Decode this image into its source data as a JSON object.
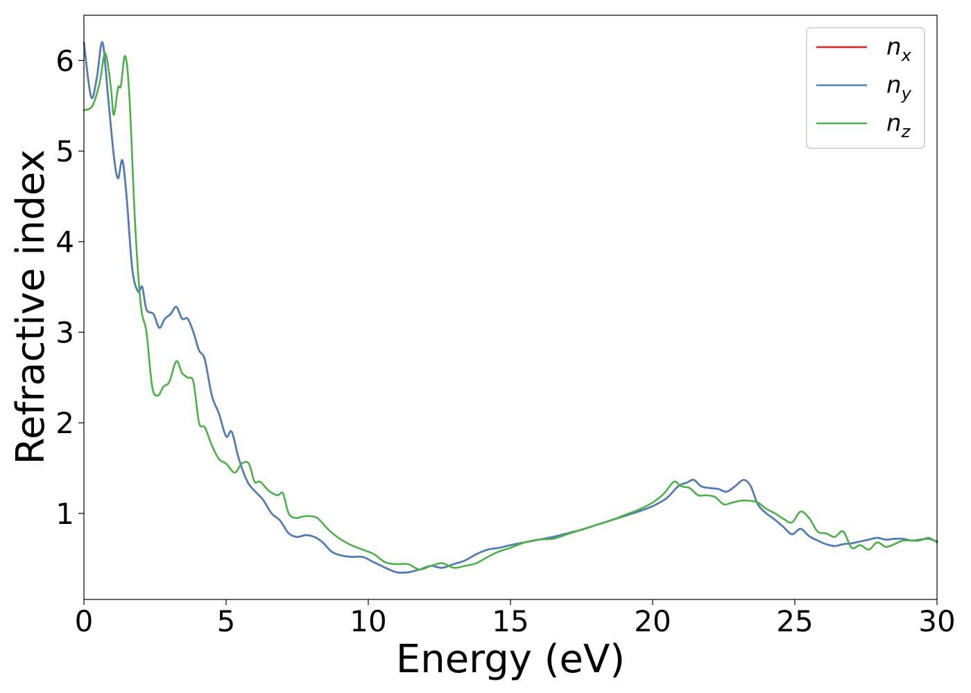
{
  "chart_data": {
    "type": "line",
    "title": "",
    "xlabel": "Energy (eV)",
    "ylabel": "Refractive index",
    "xlim": [
      0,
      30
    ],
    "ylim": [
      0.05,
      6.5
    ],
    "xticks": [
      0,
      5,
      10,
      15,
      20,
      25,
      30
    ],
    "yticks": [
      1,
      2,
      3,
      4,
      5,
      6
    ],
    "grid": false,
    "legend_position": "top-right",
    "legend": [
      {
        "base": "n",
        "sub": "x"
      },
      {
        "base": "n",
        "sub": "y"
      },
      {
        "base": "n",
        "sub": "z"
      }
    ],
    "series": [
      {
        "name": "n_x",
        "color": "#e41a1c",
        "x": [
          0,
          0.25,
          0.45,
          0.65,
          0.85,
          1.05,
          1.2,
          1.35,
          1.5,
          1.7,
          1.9,
          2.05,
          2.2,
          2.45,
          2.65,
          2.85,
          3.05,
          3.25,
          3.45,
          3.65,
          3.85,
          4.05,
          4.25,
          4.5,
          4.75,
          5.0,
          5.2,
          5.45,
          5.75,
          6.0,
          6.3,
          6.6,
          6.9,
          7.2,
          7.5,
          7.8,
          8.1,
          8.4,
          8.7,
          9.0,
          9.4,
          9.8,
          10.2,
          10.6,
          11.0,
          11.4,
          11.8,
          12.2,
          12.6,
          13.0,
          13.4,
          13.8,
          14.2,
          14.6,
          15.0,
          15.5,
          16.0,
          16.5,
          17.0,
          17.5,
          18.0,
          18.5,
          19.0,
          19.5,
          20.0,
          20.5,
          20.9,
          21.2,
          21.45,
          21.7,
          22.0,
          22.3,
          22.6,
          22.9,
          23.2,
          23.45,
          23.7,
          24.0,
          24.3,
          24.6,
          24.9,
          25.2,
          25.5,
          25.8,
          26.1,
          26.4,
          26.7,
          27.0,
          27.3,
          27.6,
          27.9,
          28.2,
          28.5,
          28.8,
          29.1,
          29.4,
          29.7,
          30.0
        ],
        "y": [
          6.2,
          5.6,
          5.8,
          6.2,
          5.6,
          4.95,
          4.7,
          4.9,
          4.5,
          3.7,
          3.45,
          3.5,
          3.25,
          3.2,
          3.05,
          3.15,
          3.2,
          3.28,
          3.15,
          3.15,
          3.0,
          2.8,
          2.7,
          2.3,
          2.1,
          1.85,
          1.9,
          1.6,
          1.35,
          1.25,
          1.15,
          1.0,
          0.92,
          0.78,
          0.74,
          0.76,
          0.74,
          0.68,
          0.58,
          0.54,
          0.52,
          0.52,
          0.46,
          0.4,
          0.35,
          0.35,
          0.38,
          0.42,
          0.4,
          0.44,
          0.48,
          0.55,
          0.6,
          0.62,
          0.65,
          0.68,
          0.71,
          0.74,
          0.78,
          0.82,
          0.87,
          0.92,
          0.97,
          1.02,
          1.08,
          1.17,
          1.3,
          1.34,
          1.37,
          1.3,
          1.28,
          1.27,
          1.24,
          1.3,
          1.37,
          1.3,
          1.1,
          1.0,
          0.93,
          0.85,
          0.77,
          0.83,
          0.75,
          0.7,
          0.66,
          0.64,
          0.66,
          0.67,
          0.69,
          0.71,
          0.73,
          0.71,
          0.72,
          0.72,
          0.7,
          0.71,
          0.72,
          0.69
        ]
      },
      {
        "name": "n_y",
        "color": "#4b7fb8",
        "x": [
          0,
          0.25,
          0.45,
          0.65,
          0.85,
          1.05,
          1.2,
          1.35,
          1.5,
          1.7,
          1.9,
          2.05,
          2.2,
          2.45,
          2.65,
          2.85,
          3.05,
          3.25,
          3.45,
          3.65,
          3.85,
          4.05,
          4.25,
          4.5,
          4.75,
          5.0,
          5.2,
          5.45,
          5.75,
          6.0,
          6.3,
          6.6,
          6.9,
          7.2,
          7.5,
          7.8,
          8.1,
          8.4,
          8.7,
          9.0,
          9.4,
          9.8,
          10.2,
          10.6,
          11.0,
          11.4,
          11.8,
          12.2,
          12.6,
          13.0,
          13.4,
          13.8,
          14.2,
          14.6,
          15.0,
          15.5,
          16.0,
          16.5,
          17.0,
          17.5,
          18.0,
          18.5,
          19.0,
          19.5,
          20.0,
          20.5,
          20.9,
          21.2,
          21.45,
          21.7,
          22.0,
          22.3,
          22.6,
          22.9,
          23.2,
          23.45,
          23.7,
          24.0,
          24.3,
          24.6,
          24.9,
          25.2,
          25.5,
          25.8,
          26.1,
          26.4,
          26.7,
          27.0,
          27.3,
          27.6,
          27.9,
          28.2,
          28.5,
          28.8,
          29.1,
          29.4,
          29.7,
          30.0
        ],
        "y": [
          6.2,
          5.6,
          5.8,
          6.2,
          5.6,
          4.95,
          4.7,
          4.9,
          4.5,
          3.7,
          3.45,
          3.5,
          3.25,
          3.2,
          3.05,
          3.15,
          3.2,
          3.28,
          3.15,
          3.15,
          3.0,
          2.8,
          2.7,
          2.3,
          2.1,
          1.85,
          1.9,
          1.6,
          1.35,
          1.25,
          1.15,
          1.0,
          0.92,
          0.78,
          0.74,
          0.76,
          0.74,
          0.68,
          0.58,
          0.54,
          0.52,
          0.52,
          0.46,
          0.4,
          0.35,
          0.35,
          0.38,
          0.42,
          0.4,
          0.44,
          0.48,
          0.55,
          0.6,
          0.62,
          0.65,
          0.68,
          0.71,
          0.74,
          0.78,
          0.82,
          0.87,
          0.92,
          0.97,
          1.02,
          1.08,
          1.17,
          1.3,
          1.34,
          1.37,
          1.3,
          1.28,
          1.27,
          1.24,
          1.3,
          1.37,
          1.3,
          1.1,
          1.0,
          0.93,
          0.85,
          0.77,
          0.83,
          0.75,
          0.7,
          0.66,
          0.64,
          0.66,
          0.67,
          0.69,
          0.71,
          0.73,
          0.71,
          0.72,
          0.72,
          0.7,
          0.71,
          0.72,
          0.69
        ]
      },
      {
        "name": "n_z",
        "color": "#4daf4a",
        "x": [
          0,
          0.3,
          0.55,
          0.75,
          0.95,
          1.05,
          1.2,
          1.3,
          1.45,
          1.6,
          1.8,
          2.0,
          2.2,
          2.4,
          2.6,
          2.8,
          3.0,
          3.25,
          3.45,
          3.65,
          3.85,
          4.05,
          4.25,
          4.5,
          4.75,
          5.0,
          5.3,
          5.55,
          5.8,
          6.0,
          6.2,
          6.5,
          6.8,
          7.0,
          7.2,
          7.45,
          7.8,
          8.2,
          8.6,
          9.0,
          9.4,
          9.8,
          10.2,
          10.6,
          11.0,
          11.4,
          11.8,
          12.2,
          12.6,
          13.0,
          13.4,
          13.8,
          14.2,
          14.6,
          15.0,
          15.5,
          16.0,
          16.5,
          17.0,
          17.5,
          18.0,
          18.5,
          19.0,
          19.5,
          20.0,
          20.4,
          20.75,
          21.0,
          21.3,
          21.6,
          21.9,
          22.2,
          22.5,
          22.8,
          23.1,
          23.4,
          23.7,
          24.0,
          24.3,
          24.6,
          24.9,
          25.2,
          25.5,
          25.8,
          26.1,
          26.4,
          26.7,
          27.0,
          27.3,
          27.6,
          27.9,
          28.2,
          28.5,
          28.8,
          29.1,
          29.4,
          29.7,
          30.0
        ],
        "y": [
          5.45,
          5.5,
          5.75,
          6.08,
          5.7,
          5.4,
          5.7,
          5.72,
          6.05,
          5.6,
          4.2,
          3.3,
          3.0,
          2.4,
          2.3,
          2.4,
          2.45,
          2.68,
          2.55,
          2.5,
          2.45,
          2.0,
          1.95,
          1.75,
          1.6,
          1.55,
          1.45,
          1.55,
          1.55,
          1.35,
          1.35,
          1.25,
          1.2,
          1.22,
          1.0,
          0.95,
          0.97,
          0.95,
          0.82,
          0.72,
          0.65,
          0.6,
          0.55,
          0.46,
          0.44,
          0.44,
          0.38,
          0.42,
          0.45,
          0.4,
          0.42,
          0.45,
          0.52,
          0.58,
          0.62,
          0.68,
          0.71,
          0.72,
          0.77,
          0.82,
          0.87,
          0.92,
          0.98,
          1.04,
          1.12,
          1.22,
          1.35,
          1.3,
          1.28,
          1.2,
          1.2,
          1.18,
          1.1,
          1.12,
          1.14,
          1.14,
          1.12,
          1.05,
          1.0,
          0.94,
          0.9,
          1.02,
          0.95,
          0.8,
          0.78,
          0.74,
          0.8,
          0.62,
          0.65,
          0.6,
          0.68,
          0.63,
          0.66,
          0.7,
          0.7,
          0.7,
          0.73,
          0.68
        ]
      }
    ]
  }
}
